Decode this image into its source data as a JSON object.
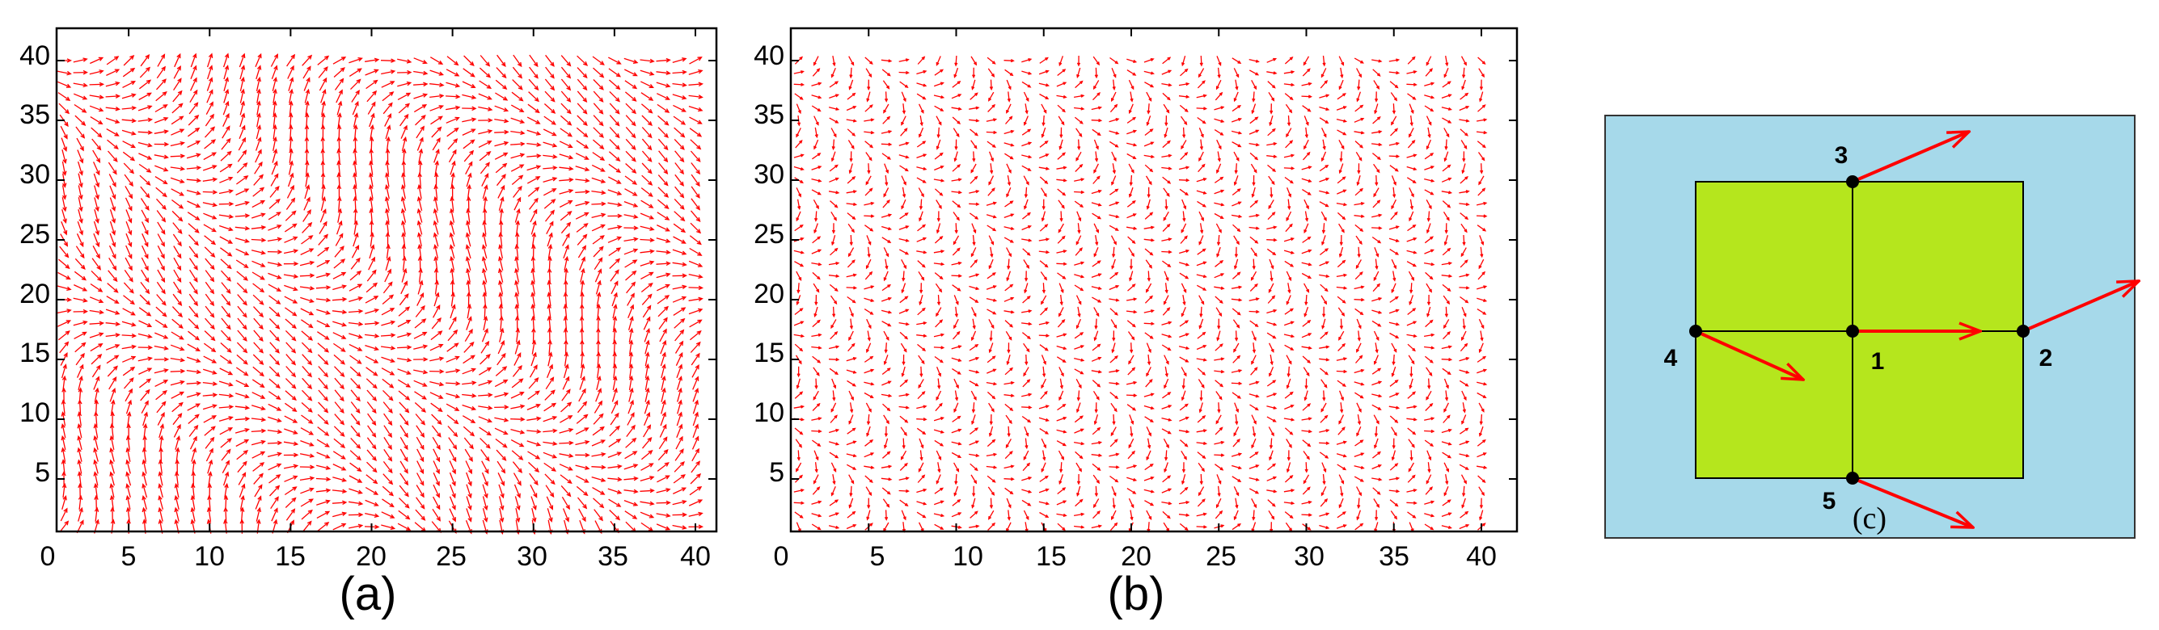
{
  "panels": {
    "a": {
      "label": "(a)"
    },
    "b": {
      "label": "(b)"
    },
    "c": {
      "label": "(c)"
    }
  },
  "colors": {
    "arrow": "#ff0000",
    "background_outer": "#a6d9ea",
    "cell_fill": "#b5e61d",
    "frame": "#000000",
    "node": "#000000"
  },
  "chart_data": [
    {
      "type": "quiver",
      "panel": "(a)",
      "title": "",
      "xlabel": "",
      "ylabel": "",
      "xlim": [
        0,
        41
      ],
      "ylim": [
        0,
        41
      ],
      "xticks": [
        0,
        5,
        10,
        15,
        20,
        25,
        30,
        35,
        40
      ],
      "yticks": [
        5,
        10,
        15,
        20,
        25,
        30,
        35,
        40
      ],
      "grid": false,
      "x_range": [
        1,
        40
      ],
      "y_range": [
        1,
        40
      ],
      "grid_spacing": 1,
      "field": "smooth swirling unit-vector texture with diagonal bands"
    },
    {
      "type": "quiver",
      "panel": "(b)",
      "title": "",
      "xlabel": "",
      "ylabel": "",
      "xlim": [
        0,
        41
      ],
      "ylim": [
        0,
        41
      ],
      "xticks": [
        0,
        5,
        10,
        15,
        20,
        25,
        30,
        35,
        40
      ],
      "yticks": [
        5,
        10,
        15,
        20,
        25,
        30,
        35,
        40
      ],
      "grid": false,
      "x_range": [
        1,
        40
      ],
      "y_range": [
        1,
        40
      ],
      "grid_spacing": 1,
      "field": "short vectors in herringbone pattern along parallel diagonal stripes"
    }
  ],
  "diagram_c": {
    "nodes": [
      {
        "id": "1",
        "label": "1"
      },
      {
        "id": "2",
        "label": "2"
      },
      {
        "id": "3",
        "label": "3"
      },
      {
        "id": "4",
        "label": "4"
      },
      {
        "id": "5",
        "label": "5"
      }
    ]
  }
}
